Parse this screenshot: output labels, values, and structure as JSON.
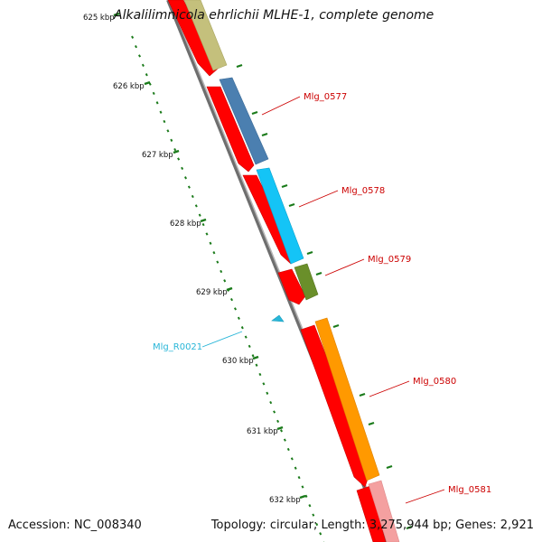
{
  "title": "Alkalilimnicola ehrlichii MLHE-1, complete genome",
  "footer": {
    "accession_label": "Accession:",
    "accession": "NC_008340",
    "topology_label": "Topology:",
    "topology": "circular",
    "length_label": "Length:",
    "length": "3,275,944 bp",
    "genes_label": "Genes:",
    "genes": "2,921"
  },
  "ruler": {
    "ticks": [
      "625 kbp",
      "626 kbp",
      "627 kbp",
      "628 kbp",
      "629 kbp",
      "630 kbp",
      "631 kbp",
      "632 kbp"
    ]
  },
  "genes": [
    {
      "label": "Mlg_0577",
      "color": "#cc0000"
    },
    {
      "label": "Mlg_0578",
      "color": "#cc0000"
    },
    {
      "label": "Mlg_0579",
      "color": "#cc0000"
    },
    {
      "label": "Mlg_R0021",
      "color": "#29b6d8"
    },
    {
      "label": "Mlg_0580",
      "color": "#cc0000"
    },
    {
      "label": "Mlg_0581",
      "color": "#cc0000"
    }
  ],
  "colors": {
    "backbone": "#8a8a8a",
    "cds": "#ff0000",
    "ticks": "#1a7a1a",
    "khaki": "#c4c07c",
    "steelblue": "#4b7fb0",
    "skyblue": "#14c4f6",
    "olive": "#6a8f2a",
    "orange": "#ff9900",
    "pink": "#f4a0a0"
  }
}
